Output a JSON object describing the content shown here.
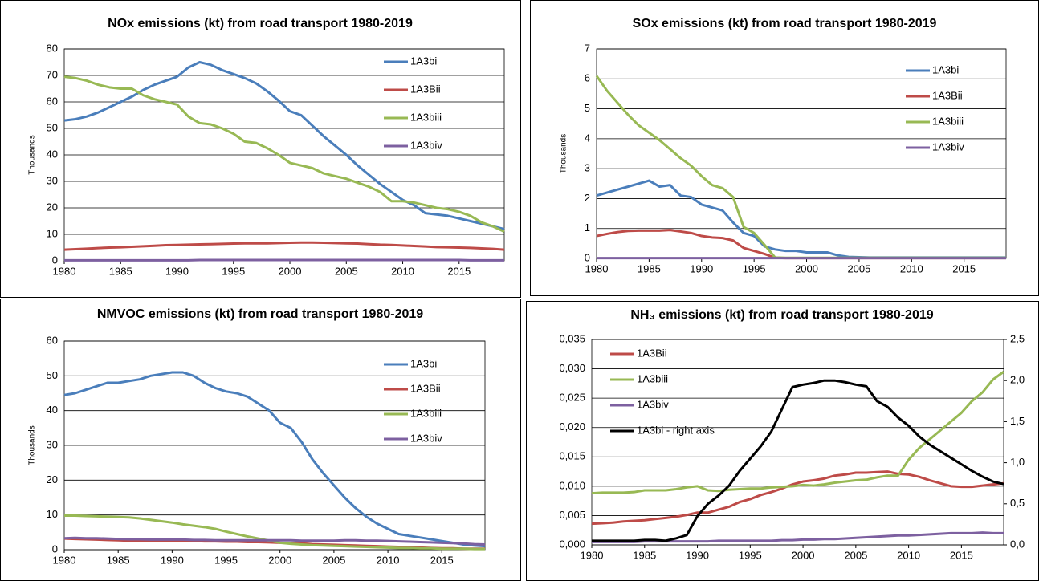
{
  "chart_data": [
    {
      "type": "line",
      "title": "NOx emissions (kt) from road transport 1980-2019",
      "ylabel": "Thousands",
      "x": [
        1980,
        1981,
        1982,
        1983,
        1984,
        1985,
        1986,
        1987,
        1988,
        1989,
        1990,
        1991,
        1992,
        1993,
        1994,
        1995,
        1996,
        1997,
        1998,
        1999,
        2000,
        2001,
        2002,
        2003,
        2004,
        2005,
        2006,
        2007,
        2008,
        2009,
        2010,
        2011,
        2012,
        2013,
        2014,
        2015,
        2016,
        2017,
        2018,
        2019
      ],
      "xlim": [
        1980,
        2019
      ],
      "xticks": [
        1980,
        1985,
        1990,
        1995,
        2000,
        2005,
        2010,
        2015
      ],
      "ylim": [
        0,
        80
      ],
      "yticks": [
        0,
        10,
        20,
        30,
        40,
        50,
        60,
        70,
        80
      ],
      "grid": true,
      "legend": "upper right",
      "series": [
        {
          "name": "1A3bi",
          "color": "#4a7ebb",
          "values": [
            53,
            53.5,
            54.5,
            56,
            58,
            60,
            62,
            64.5,
            66.5,
            68,
            69.5,
            73,
            75,
            74,
            72,
            70.5,
            69,
            67,
            64,
            60.5,
            56.5,
            55,
            51,
            47,
            43.5,
            40,
            36,
            32.5,
            29,
            26,
            23,
            21,
            18,
            17.5,
            17,
            16,
            15,
            14,
            13,
            12
          ]
        },
        {
          "name": "1A3Bii",
          "color": "#be4b48",
          "values": [
            4.2,
            4.4,
            4.6,
            4.8,
            5,
            5.1,
            5.3,
            5.5,
            5.7,
            5.9,
            6,
            6.1,
            6.2,
            6.3,
            6.4,
            6.5,
            6.6,
            6.6,
            6.6,
            6.7,
            6.8,
            6.9,
            6.9,
            6.8,
            6.7,
            6.6,
            6.5,
            6.3,
            6.1,
            6,
            5.8,
            5.6,
            5.4,
            5.2,
            5.1,
            5,
            4.9,
            4.7,
            4.5,
            4.2
          ]
        },
        {
          "name": "1A3biii",
          "color": "#98b954",
          "values": [
            69.5,
            69,
            68,
            66.5,
            65.5,
            65,
            65,
            62.5,
            61,
            60,
            59,
            54.5,
            52,
            51.5,
            50,
            48,
            45,
            44.5,
            42.5,
            40,
            37,
            36,
            35,
            33,
            32,
            31,
            29.5,
            28,
            26,
            22.5,
            22.5,
            22,
            21,
            20,
            19.5,
            18.5,
            17,
            14.5,
            13,
            11
          ]
        },
        {
          "name": "1A3biv",
          "color": "#7d60a0",
          "values": [
            0.2,
            0.2,
            0.2,
            0.2,
            0.2,
            0.2,
            0.2,
            0.2,
            0.2,
            0.2,
            0.2,
            0.2,
            0.3,
            0.3,
            0.3,
            0.3,
            0.3,
            0.3,
            0.3,
            0.3,
            0.3,
            0.3,
            0.3,
            0.3,
            0.3,
            0.3,
            0.3,
            0.3,
            0.3,
            0.3,
            0.3,
            0.3,
            0.3,
            0.3,
            0.3,
            0.3,
            0.2,
            0.2,
            0.2,
            0.2
          ]
        }
      ]
    },
    {
      "type": "line",
      "title": "SOx emissions (kt) from road transport 1980-2019",
      "ylabel": "Thousands",
      "x": [
        1980,
        1981,
        1982,
        1983,
        1984,
        1985,
        1986,
        1987,
        1988,
        1989,
        1990,
        1991,
        1992,
        1993,
        1994,
        1995,
        1996,
        1997,
        1998,
        1999,
        2000,
        2001,
        2002,
        2003,
        2004,
        2005,
        2006,
        2007,
        2008,
        2009,
        2010,
        2011,
        2012,
        2013,
        2014,
        2015,
        2016,
        2017,
        2018,
        2019
      ],
      "xlim": [
        1980,
        2019
      ],
      "xticks": [
        1980,
        1985,
        1990,
        1995,
        2000,
        2005,
        2010,
        2015
      ],
      "ylim": [
        0,
        7
      ],
      "yticks": [
        0,
        1,
        2,
        3,
        4,
        5,
        6,
        7
      ],
      "grid": true,
      "legend": "upper right",
      "series": [
        {
          "name": "1A3bi",
          "color": "#4a7ebb",
          "values": [
            2.1,
            2.2,
            2.3,
            2.4,
            2.5,
            2.6,
            2.4,
            2.45,
            2.1,
            2.05,
            1.8,
            1.7,
            1.6,
            1.2,
            0.85,
            0.75,
            0.4,
            0.3,
            0.25,
            0.25,
            0.2,
            0.2,
            0.2,
            0.1,
            0.05,
            0.04,
            0.03,
            0.03,
            0.03,
            0.03,
            0.03,
            0.03,
            0.03,
            0.03,
            0.03,
            0.03,
            0.03,
            0.03,
            0.03,
            0.03
          ]
        },
        {
          "name": "1A3Bii",
          "color": "#be4b48",
          "values": [
            0.75,
            0.82,
            0.88,
            0.92,
            0.93,
            0.93,
            0.93,
            0.95,
            0.9,
            0.85,
            0.75,
            0.7,
            0.68,
            0.6,
            0.35,
            0.25,
            0.15,
            0.02,
            0.01,
            0.01,
            0.01,
            0.01,
            0.01,
            0.01,
            0.01,
            0.01,
            0.01,
            0.01,
            0.01,
            0.01,
            0.01,
            0.01,
            0.01,
            0.01,
            0.01,
            0.01,
            0.01,
            0.01,
            0.01,
            0.01
          ]
        },
        {
          "name": "1A3biii",
          "color": "#98b954",
          "values": [
            6.1,
            5.6,
            5.2,
            4.8,
            4.45,
            4.2,
            3.95,
            3.65,
            3.35,
            3.1,
            2.75,
            2.45,
            2.35,
            2.05,
            1.05,
            0.85,
            0.45,
            0.03,
            0.02,
            0.02,
            0.02,
            0.02,
            0.02,
            0.02,
            0.02,
            0.02,
            0.02,
            0.02,
            0.02,
            0.02,
            0.02,
            0.02,
            0.02,
            0.02,
            0.02,
            0.02,
            0.02,
            0.02,
            0.02,
            0.02
          ]
        },
        {
          "name": "1A3biv",
          "color": "#7d60a0",
          "values": [
            0.01,
            0.01,
            0.01,
            0.01,
            0.01,
            0.01,
            0.01,
            0.01,
            0.01,
            0.01,
            0.01,
            0.01,
            0.01,
            0.01,
            0.01,
            0.01,
            0.01,
            0.01,
            0.01,
            0.01,
            0.01,
            0.01,
            0.01,
            0.01,
            0.01,
            0.01,
            0.01,
            0.01,
            0.01,
            0.01,
            0.01,
            0.01,
            0.01,
            0.01,
            0.01,
            0.01,
            0.01,
            0.01,
            0.01,
            0.01
          ]
        }
      ]
    },
    {
      "type": "line",
      "title": "NMVOC emissions (kt) from road transport 1980-2019",
      "ylabel": "Thousands",
      "x": [
        1980,
        1981,
        1982,
        1983,
        1984,
        1985,
        1986,
        1987,
        1988,
        1989,
        1990,
        1991,
        1992,
        1993,
        1994,
        1995,
        1996,
        1997,
        1998,
        1999,
        2000,
        2001,
        2002,
        2003,
        2004,
        2005,
        2006,
        2007,
        2008,
        2009,
        2010,
        2011,
        2012,
        2013,
        2014,
        2015,
        2016,
        2017,
        2018,
        2019
      ],
      "xlim": [
        1980,
        2019
      ],
      "xticks": [
        1980,
        1985,
        1990,
        1995,
        2000,
        2005,
        2010,
        2015
      ],
      "ylim": [
        0,
        60
      ],
      "yticks": [
        0,
        10,
        20,
        30,
        40,
        50,
        60
      ],
      "grid": true,
      "legend": "upper right",
      "series": [
        {
          "name": "1A3bi",
          "color": "#4a7ebb",
          "values": [
            44.5,
            45,
            46,
            47,
            48,
            48,
            48.5,
            49,
            50,
            50.5,
            51,
            51,
            50,
            48,
            46.5,
            45.5,
            45,
            44,
            42,
            40,
            36.5,
            35,
            31,
            26,
            22,
            18.5,
            15,
            12,
            9.5,
            7.5,
            6,
            4.5,
            4,
            3.5,
            3,
            2.5,
            2,
            1.5,
            1.2,
            1
          ]
        },
        {
          "name": "1A3Bii",
          "color": "#be4b48",
          "values": [
            3.2,
            3.1,
            3,
            2.9,
            2.8,
            2.7,
            2.6,
            2.6,
            2.5,
            2.5,
            2.5,
            2.5,
            2.5,
            2.4,
            2.4,
            2.3,
            2.3,
            2.2,
            2.2,
            2.1,
            2,
            1.9,
            1.8,
            1.6,
            1.5,
            1.4,
            1.3,
            1.2,
            1.1,
            1,
            0.9,
            0.8,
            0.7,
            0.6,
            0.5,
            0.4,
            0.4,
            0.3,
            0.3,
            0.3
          ]
        },
        {
          "name": "1A3biii",
          "color": "#98b954",
          "values": [
            9.8,
            9.8,
            9.7,
            9.6,
            9.5,
            9.4,
            9.3,
            9,
            8.6,
            8.2,
            7.8,
            7.3,
            6.9,
            6.5,
            6,
            5.2,
            4.5,
            3.8,
            3.2,
            2.6,
            2,
            1.7,
            1.5,
            1.3,
            1.2,
            1.1,
            1,
            0.9,
            0.8,
            0.7,
            0.6,
            0.5,
            0.5,
            0.4,
            0.4,
            0.3,
            0.3,
            0.3,
            0.2,
            0.2
          ]
        },
        {
          "name": "1A3biv",
          "color": "#7d60a0",
          "values": [
            3.3,
            3.4,
            3.3,
            3.3,
            3.2,
            3.1,
            3,
            3,
            2.9,
            2.9,
            2.9,
            2.9,
            2.8,
            2.8,
            2.7,
            2.7,
            2.7,
            2.7,
            2.7,
            2.7,
            2.7,
            2.7,
            2.6,
            2.6,
            2.6,
            2.6,
            2.7,
            2.7,
            2.6,
            2.6,
            2.5,
            2.4,
            2.3,
            2.2,
            2.1,
            2,
            1.9,
            1.8,
            1.6,
            1.5
          ]
        }
      ]
    },
    {
      "type": "line",
      "title": "NH₃ emissions (kt) from road transport 1980-2019",
      "x": [
        1980,
        1981,
        1982,
        1983,
        1984,
        1985,
        1986,
        1987,
        1988,
        1989,
        1990,
        1991,
        1992,
        1993,
        1994,
        1995,
        1996,
        1997,
        1998,
        1999,
        2000,
        2001,
        2002,
        2003,
        2004,
        2005,
        2006,
        2007,
        2008,
        2009,
        2010,
        2011,
        2012,
        2013,
        2014,
        2015,
        2016,
        2017,
        2018,
        2019
      ],
      "xlim": [
        1980,
        2019
      ],
      "xticks": [
        1980,
        1985,
        1990,
        1995,
        2000,
        2005,
        2010,
        2015
      ],
      "ylim": [
        0,
        0.035
      ],
      "yticks": [
        {
          "value": 0,
          "label": "0,000"
        },
        {
          "value": 0.005,
          "label": "0,005"
        },
        {
          "value": 0.01,
          "label": "0,010"
        },
        {
          "value": 0.015,
          "label": "0,015"
        },
        {
          "value": 0.02,
          "label": "0,020"
        },
        {
          "value": 0.025,
          "label": "0,025"
        },
        {
          "value": 0.03,
          "label": "0,030"
        },
        {
          "value": 0.035,
          "label": "0,035"
        }
      ],
      "y2lim": [
        0,
        2.5
      ],
      "y2ticks": [
        {
          "value": 0,
          "label": "0,0"
        },
        {
          "value": 0.5,
          "label": "0,5"
        },
        {
          "value": 1,
          "label": "1,0"
        },
        {
          "value": 1.5,
          "label": "1,5"
        },
        {
          "value": 2,
          "label": "2,0"
        },
        {
          "value": 2.5,
          "label": "2,5"
        }
      ],
      "grid": true,
      "legend": "upper left",
      "series": [
        {
          "name": "1A3Bii",
          "color": "#be4b48",
          "values": [
            0.0036,
            0.0037,
            0.0038,
            0.004,
            0.0041,
            0.0042,
            0.0044,
            0.0046,
            0.0048,
            0.0051,
            0.0055,
            0.0055,
            0.006,
            0.0065,
            0.0073,
            0.0078,
            0.0085,
            0.009,
            0.0096,
            0.0103,
            0.0108,
            0.011,
            0.0113,
            0.0118,
            0.012,
            0.0123,
            0.0123,
            0.0124,
            0.0125,
            0.0121,
            0.012,
            0.0116,
            0.011,
            0.0105,
            0.01,
            0.0099,
            0.0099,
            0.0101,
            0.0103,
            0.0105
          ]
        },
        {
          "name": "1A3biii",
          "color": "#98b954",
          "values": [
            0.0088,
            0.0089,
            0.0089,
            0.0089,
            0.009,
            0.0093,
            0.0093,
            0.0093,
            0.0095,
            0.0098,
            0.01,
            0.0093,
            0.0092,
            0.0094,
            0.0095,
            0.0096,
            0.0096,
            0.0098,
            0.0099,
            0.01,
            0.0102,
            0.0101,
            0.0103,
            0.0106,
            0.0108,
            0.011,
            0.0111,
            0.0115,
            0.0118,
            0.0118,
            0.0145,
            0.0165,
            0.018,
            0.0195,
            0.021,
            0.0225,
            0.0245,
            0.026,
            0.0282,
            0.0295
          ]
        },
        {
          "name": "1A3biv",
          "color": "#7d60a0",
          "values": [
            0.0005,
            0.0005,
            0.0005,
            0.0005,
            0.0005,
            0.0006,
            0.0006,
            0.0006,
            0.0006,
            0.0006,
            0.0006,
            0.0006,
            0.0007,
            0.0007,
            0.0007,
            0.0007,
            0.0007,
            0.0007,
            0.0008,
            0.0008,
            0.0009,
            0.0009,
            0.001,
            0.001,
            0.0011,
            0.0012,
            0.0013,
            0.0014,
            0.0015,
            0.0016,
            0.0016,
            0.0017,
            0.0018,
            0.0019,
            0.002,
            0.002,
            0.002,
            0.0021,
            0.002,
            0.002
          ]
        },
        {
          "name": "1A3bi  - right axis",
          "color": "#000000",
          "axis": "y2",
          "values": [
            0.05,
            0.05,
            0.05,
            0.05,
            0.05,
            0.06,
            0.06,
            0.05,
            0.08,
            0.12,
            0.35,
            0.5,
            0.6,
            0.72,
            0.9,
            1.05,
            1.2,
            1.38,
            1.65,
            1.92,
            1.95,
            1.97,
            2,
            2,
            1.98,
            1.95,
            1.93,
            1.75,
            1.68,
            1.55,
            1.45,
            1.32,
            1.22,
            1.14,
            1.06,
            0.98,
            0.9,
            0.83,
            0.77,
            0.74
          ]
        }
      ]
    }
  ]
}
